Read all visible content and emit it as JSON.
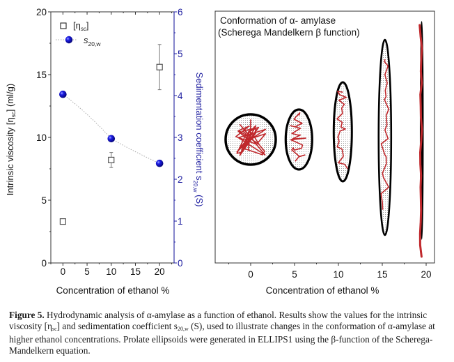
{
  "chart_data": [
    {
      "type": "scatter",
      "panel": "left",
      "title": "",
      "xlabel": "Concentration of ethanol %",
      "ylabel": "Intrinsic viscosity [η_sc] (ml/g)",
      "ylabel_parts": {
        "pre": "Intrinsic viscosity [η",
        "sub": "sc",
        "post": "] (ml/g)"
      },
      "y2label": "Sedimentation coefficient s_20,w (S)",
      "y2label_parts": {
        "pre": "Sedimentation coefficient s",
        "sub": "20,w",
        "post": " (S)"
      },
      "xlim": [
        -2.5,
        23
      ],
      "ylim": [
        0,
        20
      ],
      "y2lim": [
        0,
        6
      ],
      "x_ticks": [
        0,
        5,
        10,
        15,
        20
      ],
      "x_tick_labels": [
        "0",
        "5",
        "10",
        "15",
        "20"
      ],
      "y_ticks": [
        0,
        5,
        10,
        15,
        20
      ],
      "y_tick_labels": [
        "0",
        "5",
        "10",
        "15",
        "20"
      ],
      "y2_ticks": [
        0,
        1,
        2,
        3,
        4,
        5,
        6
      ],
      "y2_tick_labels": [
        "0",
        "1",
        "2",
        "3",
        "4",
        "5",
        "6"
      ],
      "grid": false,
      "legend_position": "top-left",
      "y2_color": "#1f1fa0",
      "series": [
        {
          "name": "[η_sc]",
          "legend_parts": {
            "pre": "[η",
            "sub": "sc",
            "post": "]"
          },
          "axis": "left",
          "marker": "open-square",
          "color": "#555555",
          "x": [
            0,
            10,
            20
          ],
          "y": [
            3.3,
            8.2,
            15.6
          ],
          "error": [
            [
              0,
              0
            ],
            [
              0.6,
              0.6
            ],
            [
              1.8,
              1.8
            ]
          ]
        },
        {
          "name": "s_20,w",
          "legend_parts": {
            "pre": "s",
            "sub": "20,w",
            "post": ""
          },
          "axis": "right",
          "marker": "filled-sphere",
          "color": "#0a0ad0",
          "line": "dotted",
          "x": [
            0,
            10,
            20
          ],
          "y": [
            4.03,
            2.97,
            2.38
          ]
        }
      ]
    },
    {
      "type": "diagram",
      "panel": "right",
      "title_line1": "Conformation of α- amylase",
      "title_line2": "(Scherega Mandelkern β function)",
      "xlabel": "Concentration of ethanol %",
      "xlim": [
        -4,
        21
      ],
      "x_ticks": [
        0,
        5,
        10,
        15,
        20
      ],
      "x_tick_labels": [
        "0",
        "5",
        "10",
        "15",
        "20"
      ],
      "shape_color": "#000000",
      "chain_color": "#c0282c",
      "ellipsoids": [
        {
          "x": 0,
          "label": "sphere",
          "axial_ratio": 1.0
        },
        {
          "x": 5.5,
          "label": "prolate",
          "axial_ratio": 2.2
        },
        {
          "x": 10.5,
          "label": "prolate",
          "axial_ratio": 4.2
        },
        {
          "x": 15.3,
          "label": "prolate",
          "axial_ratio": 8.5
        },
        {
          "x": 19.5,
          "label": "rod",
          "axial_ratio": 40
        }
      ]
    }
  ],
  "caption": {
    "label": "Figure 5.",
    "t1": " Hydrodynamic analysis of α-amylase as a function of ethanol. Results show the values for the intrinsic viscosity [η",
    "s1": "sc",
    "t2": "] and sedimentation coefficient s",
    "s2": "20,w",
    "t3": " (S), used to illustrate changes in the conformation of α-amylase at higher ethanol concentrations. Prolate ellipsoids were generated in ELLIPS1 using the β-function of the Scherega-Mandelkern equation."
  }
}
